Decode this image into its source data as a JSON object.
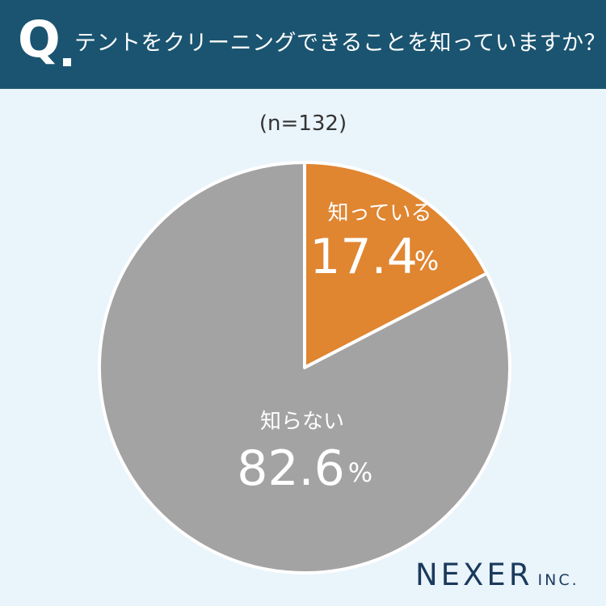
{
  "header": {
    "q_label": "Q",
    "question": "テントをクリーニングできることを知っていますか？"
  },
  "sample": "(n=132)",
  "colors": {
    "header_bg": "#1a5470",
    "background": "#eaf4fb",
    "slice_know": "#e08530",
    "slice_dont_know": "#a3a3a3",
    "label_text": "#ffffff"
  },
  "chart_data": {
    "type": "pie",
    "title": "テントをクリーニングできることを知っていますか？",
    "n": "(n=132)",
    "slices": [
      {
        "label": "知っている",
        "value": 17.4,
        "display": "17.4",
        "unit": "%",
        "color": "#e08530"
      },
      {
        "label": "知らない",
        "value": 82.6,
        "display": "82.6",
        "unit": "%",
        "color": "#a3a3a3"
      }
    ],
    "start_angle": "12 o'clock",
    "direction": "clockwise"
  },
  "footer": {
    "logo_main": "NEXER",
    "logo_sub": "INC."
  }
}
